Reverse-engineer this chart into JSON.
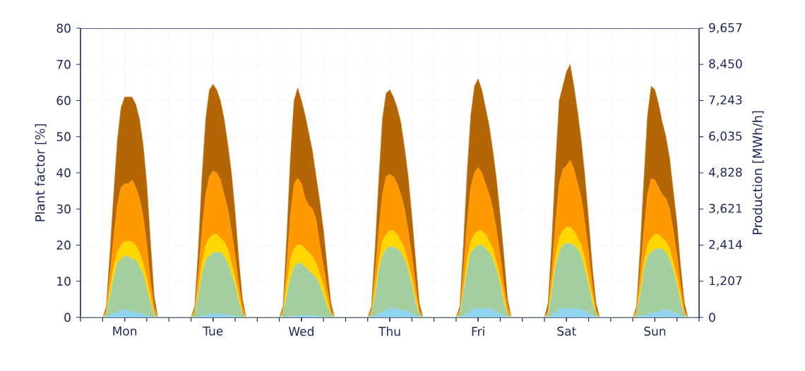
{
  "chart_data": {
    "type": "area",
    "ylabel": "Plant factor [%]",
    "y2label": "Production [MWh/h]",
    "categories": [
      null,
      null,
      null,
      null,
      null,
      null,
      null,
      null,
      null,
      null,
      null,
      null,
      "Mon",
      null,
      null,
      null,
      null,
      null,
      null,
      null,
      null,
      null,
      null,
      null,
      null,
      null,
      null,
      null,
      null,
      null,
      null,
      null,
      null,
      null,
      null,
      null,
      "Tue",
      null,
      null,
      null,
      null,
      null,
      null,
      null,
      null,
      null,
      null,
      null,
      null,
      null,
      null,
      null,
      null,
      null,
      null,
      null,
      null,
      null,
      null,
      null,
      "Wed",
      null,
      null,
      null,
      null,
      null,
      null,
      null,
      null,
      null,
      null,
      null,
      null,
      null,
      null,
      null,
      null,
      null,
      null,
      null,
      null,
      null,
      null,
      null,
      "Thu",
      null,
      null,
      null,
      null,
      null,
      null,
      null,
      null,
      null,
      null,
      null,
      null,
      null,
      null,
      null,
      null,
      null,
      null,
      null,
      null,
      null,
      null,
      null,
      "Fri",
      null,
      null,
      null,
      null,
      null,
      null,
      null,
      null,
      null,
      null,
      null,
      null,
      null,
      null,
      null,
      null,
      null,
      null,
      null,
      null,
      null,
      null,
      null,
      "Sat",
      null,
      null,
      null,
      null,
      null,
      null,
      null,
      null,
      null,
      null,
      null,
      null,
      null,
      null,
      null,
      null,
      null,
      null,
      null,
      null,
      null,
      null,
      null,
      "Sun",
      null,
      null,
      null,
      null,
      null,
      null,
      null,
      null,
      null,
      null,
      null,
      null
    ],
    "series": [
      {
        "color": "#b46504",
        "values": [
          0,
          0,
          0,
          0,
          0,
          0,
          0,
          3,
          18,
          34,
          49,
          58,
          61,
          61,
          61,
          59,
          55,
          48,
          37,
          21,
          6,
          0,
          0,
          0,
          0,
          0,
          0,
          0,
          0,
          0,
          0,
          3,
          19,
          39,
          55,
          63,
          64.5,
          63,
          60,
          55,
          48,
          40,
          29,
          16,
          5,
          0,
          0,
          0,
          0,
          0,
          0,
          0,
          0,
          0,
          0,
          3,
          22,
          44,
          60,
          63.5,
          60,
          56,
          51,
          46,
          39,
          32,
          24,
          14,
          4,
          0,
          0,
          0,
          0,
          0,
          0,
          0,
          0,
          0,
          0,
          3,
          19,
          38,
          55,
          62,
          63,
          61,
          58,
          54,
          47,
          39,
          28,
          16,
          4,
          0,
          0,
          0,
          0,
          0,
          0,
          0,
          0,
          0,
          0,
          3,
          20,
          40,
          56,
          64,
          66,
          63,
          58,
          53,
          46,
          38,
          28,
          17,
          5,
          0,
          0,
          0,
          0,
          0,
          0,
          0,
          0,
          0,
          0,
          4,
          21,
          42,
          60,
          64,
          68,
          70,
          64,
          57,
          49,
          39,
          27,
          14,
          4,
          0,
          0,
          0,
          0,
          0,
          0,
          0,
          0,
          0,
          0,
          3,
          19,
          38,
          56,
          64,
          63,
          59,
          54,
          50,
          44,
          35,
          26,
          14,
          4,
          0,
          0,
          0,
          0
        ]
      },
      {
        "color": "#ff9900",
        "values": [
          0,
          0,
          0,
          0,
          0,
          0,
          0,
          2,
          12,
          22,
          31,
          36,
          37,
          37,
          38,
          36,
          33,
          28,
          20,
          10,
          3,
          0,
          0,
          0,
          0,
          0,
          0,
          0,
          0,
          0,
          0,
          2,
          12,
          24,
          34,
          39,
          40.5,
          40,
          38,
          34,
          30,
          24,
          17,
          9,
          3,
          0,
          0,
          0,
          0,
          0,
          0,
          0,
          0,
          0,
          0,
          2,
          14,
          28,
          37,
          38.5,
          37,
          33,
          31,
          30,
          27,
          20,
          14,
          8,
          2,
          0,
          0,
          0,
          0,
          0,
          0,
          0,
          0,
          0,
          0,
          2,
          12,
          24,
          34,
          39,
          39.5,
          39,
          37,
          34,
          30,
          24,
          17,
          9,
          2,
          0,
          0,
          0,
          0,
          0,
          0,
          0,
          0,
          0,
          0,
          2,
          13,
          26,
          36,
          40,
          41.5,
          40,
          37,
          34,
          30,
          24,
          17,
          9,
          3,
          0,
          0,
          0,
          0,
          0,
          0,
          0,
          0,
          0,
          0,
          2,
          13,
          26,
          37,
          41,
          42,
          43.5,
          41,
          37,
          33,
          26,
          18,
          9,
          2,
          0,
          0,
          0,
          0,
          0,
          0,
          0,
          0,
          0,
          0,
          2,
          12,
          24,
          34,
          38.5,
          38,
          36,
          34,
          33,
          30,
          24,
          17,
          9,
          2,
          0,
          0,
          0,
          0
        ]
      },
      {
        "color": "#ffd700",
        "values": [
          0,
          0,
          0,
          0,
          0,
          0,
          0,
          1,
          8,
          14,
          18,
          20,
          21,
          21,
          21,
          20,
          18,
          15,
          11,
          6,
          1,
          0,
          0,
          0,
          0,
          0,
          0,
          0,
          0,
          0,
          0,
          1,
          8,
          15,
          20,
          22,
          23,
          23,
          22,
          21,
          19,
          15,
          11,
          6,
          1,
          0,
          0,
          0,
          0,
          0,
          0,
          0,
          0,
          0,
          0,
          1,
          9,
          16,
          19,
          20,
          20,
          19,
          18,
          17,
          15,
          12,
          9,
          5,
          1,
          0,
          0,
          0,
          0,
          0,
          0,
          0,
          0,
          0,
          0,
          1,
          8,
          15,
          21,
          23,
          24,
          24,
          23,
          21,
          19,
          15,
          11,
          6,
          1,
          0,
          0,
          0,
          0,
          0,
          0,
          0,
          0,
          0,
          0,
          1,
          8,
          16,
          21,
          23,
          24,
          24,
          23,
          21,
          19,
          15,
          11,
          6,
          1,
          0,
          0,
          0,
          0,
          0,
          0,
          0,
          0,
          0,
          0,
          1,
          9,
          17,
          22,
          24,
          25,
          25,
          24,
          22,
          20,
          16,
          11,
          6,
          1,
          0,
          0,
          0,
          0,
          0,
          0,
          0,
          0,
          0,
          0,
          1,
          8,
          15,
          20,
          22,
          23,
          23,
          22,
          21,
          19,
          15,
          11,
          6,
          1,
          0,
          0,
          0,
          0
        ]
      },
      {
        "color": "#a3cfa0",
        "values": [
          0,
          0,
          0,
          0,
          0,
          0,
          0,
          1,
          6,
          11,
          15,
          16,
          17,
          17,
          16,
          16,
          14,
          12,
          8,
          4,
          1,
          0,
          0,
          0,
          0,
          0,
          0,
          0,
          0,
          0,
          0,
          1,
          6,
          12,
          16,
          17,
          18,
          18,
          18,
          17,
          15,
          12,
          9,
          4,
          1,
          0,
          0,
          0,
          0,
          0,
          0,
          0,
          0,
          0,
          0,
          1,
          6,
          11,
          14,
          15,
          15,
          14,
          13,
          12,
          11,
          9,
          6,
          3,
          1,
          0,
          0,
          0,
          0,
          0,
          0,
          0,
          0,
          0,
          0,
          1,
          6,
          13,
          17,
          19,
          19.5,
          19.5,
          19,
          18,
          16,
          13,
          9,
          4,
          1,
          0,
          0,
          0,
          0,
          0,
          0,
          0,
          0,
          0,
          0,
          1,
          7,
          13,
          18,
          19,
          20,
          20,
          19,
          18,
          16,
          13,
          9,
          4,
          1,
          0,
          0,
          0,
          0,
          0,
          0,
          0,
          0,
          0,
          0,
          1,
          7,
          14,
          18,
          20,
          20.5,
          20.5,
          20,
          19,
          17,
          13,
          9,
          4,
          1,
          0,
          0,
          0,
          0,
          0,
          0,
          0,
          0,
          0,
          0,
          1,
          6,
          13,
          17,
          18,
          19,
          19,
          19,
          18,
          16,
          13,
          9,
          4,
          1,
          0,
          0,
          0,
          0
        ]
      },
      {
        "color": "#8fd3ec",
        "values": [
          0,
          0,
          0,
          0,
          0,
          0,
          0,
          0,
          0.5,
          1,
          1.5,
          2,
          2,
          2,
          1.5,
          1.5,
          1,
          1,
          0.5,
          0,
          0,
          0,
          0,
          0,
          0,
          0,
          0,
          0,
          0,
          0,
          0,
          0,
          0,
          0.5,
          0.5,
          1,
          1,
          1,
          1,
          1,
          0.5,
          0.5,
          0.5,
          0,
          0,
          0,
          0,
          0,
          0,
          0,
          0,
          0,
          0,
          0,
          0,
          0,
          0,
          0,
          0.5,
          0.5,
          0.5,
          0.5,
          0.5,
          0.5,
          0.5,
          0,
          0,
          0,
          0,
          0,
          0,
          0,
          0,
          0,
          0,
          0,
          0,
          0,
          0,
          0,
          0.5,
          1,
          1.5,
          2,
          2.5,
          2.5,
          2.5,
          2,
          2,
          1.5,
          1,
          0.5,
          0,
          0,
          0,
          0,
          0,
          0,
          0,
          0,
          0,
          0,
          0,
          0,
          0.5,
          1,
          2,
          2.5,
          2.5,
          2.5,
          2.5,
          2.5,
          2,
          1.5,
          1,
          0.5,
          0,
          0,
          0,
          0,
          0,
          0,
          0,
          0,
          0,
          0,
          0,
          0,
          0.5,
          1.5,
          2,
          2.5,
          2.5,
          2.5,
          2.5,
          2.5,
          2,
          2,
          1,
          0.5,
          0,
          0,
          0,
          0,
          0,
          0,
          0,
          0,
          0,
          0,
          0,
          0,
          0.5,
          0.5,
          1,
          1,
          1.5,
          1.5,
          2,
          2,
          2,
          1.5,
          1,
          0.5,
          0,
          0,
          0,
          0,
          0
        ]
      }
    ],
    "ylim": [
      0,
      80
    ],
    "yticks": [
      0,
      10,
      20,
      30,
      40,
      50,
      60,
      70,
      80
    ],
    "y2lim": [
      0,
      9657
    ],
    "y2ticks": [
      0,
      {
        "value": 1207,
        "label": "1,207"
      },
      {
        "value": 2414,
        "label": "2,414"
      },
      {
        "value": 3621,
        "label": "3,621"
      },
      {
        "value": 4828,
        "label": "4,828"
      },
      {
        "value": 6035,
        "label": "6,035"
      },
      {
        "value": 7243,
        "label": "7,243"
      },
      {
        "value": 8450,
        "label": "8,450"
      },
      {
        "value": 9657,
        "label": "9,657"
      }
    ],
    "grid": true
  }
}
